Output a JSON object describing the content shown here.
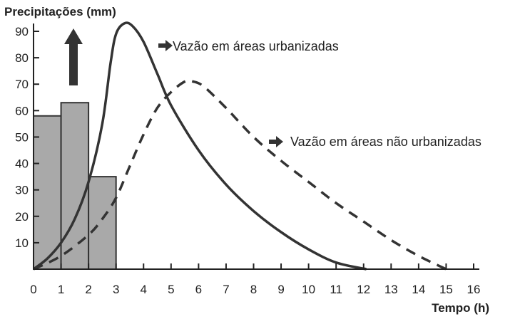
{
  "chart_data": {
    "type": "bar",
    "title": "",
    "ylabel": "Precipitações (mm)",
    "xlabel": "Tempo (h)",
    "xlim": [
      0,
      16
    ],
    "ylim": [
      0,
      90
    ],
    "x_ticks": [
      "0",
      "1",
      "2",
      "3",
      "4",
      "5",
      "6",
      "7",
      "8",
      "9",
      "10",
      "11",
      "12",
      "13",
      "14",
      "15",
      "16"
    ],
    "y_ticks": [
      "10",
      "20",
      "30",
      "40",
      "50",
      "60",
      "70",
      "80",
      "90"
    ],
    "bars": [
      {
        "x0": 0,
        "x1": 1,
        "value": 58
      },
      {
        "x0": 1,
        "x1": 2,
        "value": 63
      },
      {
        "x0": 2,
        "x1": 3,
        "value": 35
      }
    ],
    "series": [
      {
        "name": "Vazão em áreas urbanizadas",
        "style": "solid",
        "x": [
          0,
          0.5,
          1,
          1.5,
          2,
          2.5,
          2.8,
          3,
          3.3,
          3.6,
          4,
          4.5,
          5,
          6,
          7,
          8,
          9,
          10,
          11,
          12.1
        ],
        "y": [
          0,
          4,
          10,
          19,
          33,
          55,
          78,
          89,
          93,
          92,
          86,
          74,
          62,
          45,
          32,
          22,
          14,
          7.5,
          2.5,
          0
        ]
      },
      {
        "name": "Vazão em áreas não urbanizadas",
        "style": "dashed",
        "x": [
          0,
          1,
          2,
          2.5,
          3,
          3.5,
          4,
          4.5,
          5,
          5.5,
          5.8,
          6.2,
          7,
          8,
          9,
          10,
          11,
          12,
          13,
          14,
          15
        ],
        "y": [
          0,
          5,
          13,
          19,
          27,
          39,
          51,
          61,
          67,
          71,
          71,
          69,
          61,
          50,
          41,
          33,
          25,
          18,
          11,
          5,
          0
        ]
      }
    ],
    "colors": {
      "bar_fill": "#a9a9a9",
      "bar_stroke": "#333333",
      "line": "#333333",
      "axis": "#222222"
    },
    "grid": false,
    "annotations": [
      {
        "text": "Vazão em áreas urbanizadas",
        "series": 0
      },
      {
        "text": "Vazão em áreas não urbanizadas",
        "series": 1
      }
    ],
    "arrow_up_icon": "arrow-up-icon",
    "arrow_right_icon": "arrow-right-icon"
  }
}
